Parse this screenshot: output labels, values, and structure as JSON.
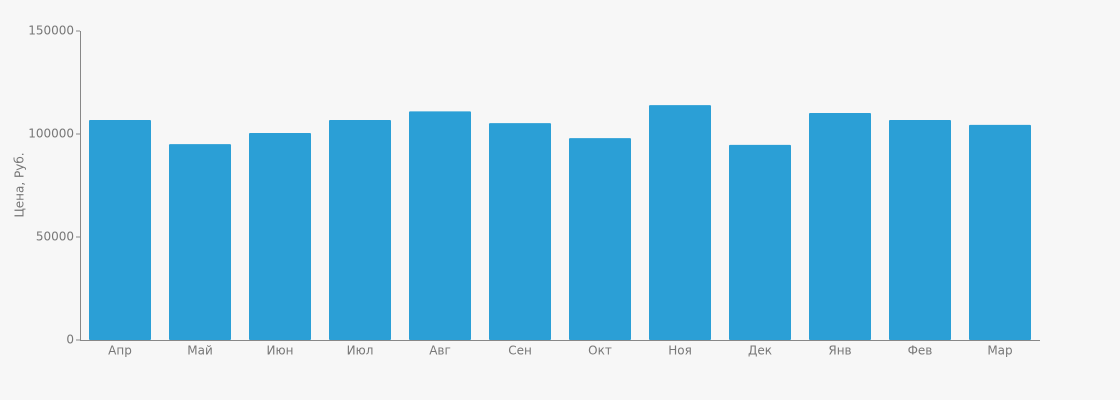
{
  "chart_data": {
    "type": "bar",
    "y_label": "Цена, Руб.",
    "categories": [
      "Апр",
      "Май",
      "Июн",
      "Июл",
      "Авг",
      "Сен",
      "Окт",
      "Ноя",
      "Дек",
      "Янв",
      "Фев",
      "Мар"
    ],
    "values": [
      106800,
      95100,
      100500,
      106800,
      111000,
      105300,
      98000,
      114000,
      94700,
      110200,
      106800,
      104400
    ],
    "color": "#2b9fd6",
    "ylim": [
      0,
      150000
    ],
    "yticks": [
      0,
      50000,
      100000,
      150000
    ],
    "grid": false
  }
}
